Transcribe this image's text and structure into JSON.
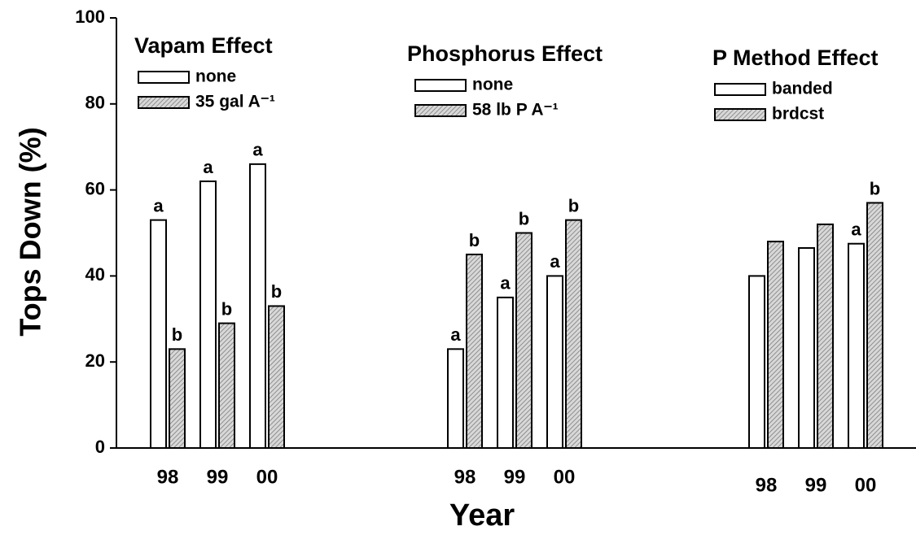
{
  "chart_data": {
    "type": "bar",
    "ylabel": "Tops Down  (%)",
    "xlabel": "Year",
    "ylim": [
      0,
      100
    ],
    "yticks": [
      0,
      20,
      40,
      60,
      80,
      100
    ],
    "panels": [
      {
        "title": "Vapam Effect",
        "categories": [
          "98",
          "99",
          "00"
        ],
        "series": [
          {
            "name": "none",
            "color": "#ffffff",
            "values": [
              53,
              62,
              66
            ],
            "labels": [
              "a",
              "a",
              "a"
            ]
          },
          {
            "name": "35 gal A⁻¹",
            "color": "#bbbbbb",
            "values": [
              23,
              29,
              33
            ],
            "labels": [
              "b",
              "b",
              "b"
            ]
          }
        ]
      },
      {
        "title": "Phosphorus Effect",
        "categories": [
          "98",
          "99",
          "00"
        ],
        "series": [
          {
            "name": "none",
            "color": "#ffffff",
            "values": [
              23,
              35,
              40
            ],
            "labels": [
              "a",
              "a",
              "a"
            ]
          },
          {
            "name": "58 lb P A⁻¹",
            "color": "#bbbbbb",
            "values": [
              45,
              50,
              53
            ],
            "labels": [
              "b",
              "b",
              "b"
            ]
          }
        ]
      },
      {
        "title": "P Method Effect",
        "categories": [
          "98",
          "99",
          "00"
        ],
        "series": [
          {
            "name": "banded",
            "color": "#ffffff",
            "values": [
              40,
              46.5,
              47.5
            ],
            "labels": [
              null,
              null,
              "a"
            ]
          },
          {
            "name": "brdcst",
            "color": "#bbbbbb",
            "values": [
              48,
              52,
              57
            ],
            "labels": [
              null,
              null,
              "b"
            ]
          }
        ]
      }
    ]
  }
}
